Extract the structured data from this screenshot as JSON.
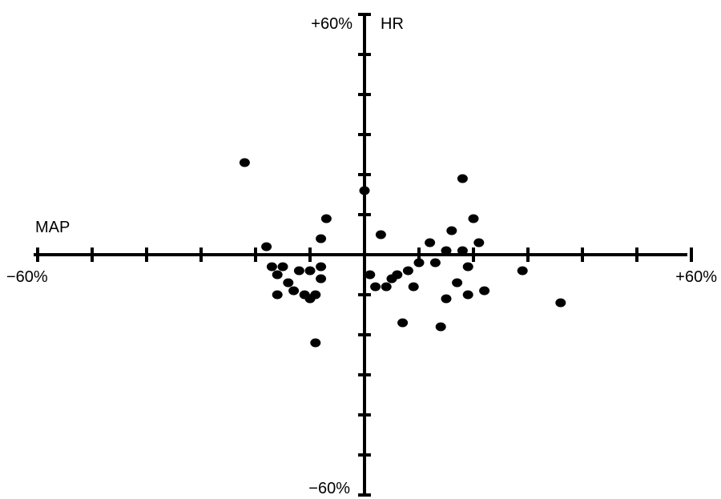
{
  "chart_data": {
    "type": "scatter",
    "title": "",
    "xlabel": "MAP",
    "ylabel": "HR",
    "xlim": [
      -60,
      60
    ],
    "ylim": [
      -60,
      60
    ],
    "x_tick_labels": {
      "min": "−60%",
      "max": "+60%"
    },
    "y_tick_labels": {
      "min": "−60%",
      "max": "+60%"
    },
    "x_tick_step": 10,
    "y_tick_step": 10,
    "grid": false,
    "legend": "none",
    "point_color": "#000000",
    "points": [
      [
        -22,
        23
      ],
      [
        -18,
        2
      ],
      [
        -17,
        -3
      ],
      [
        -16,
        -5
      ],
      [
        -15,
        -3
      ],
      [
        -14,
        -7
      ],
      [
        -16,
        -10
      ],
      [
        -13,
        -9
      ],
      [
        -12,
        -4
      ],
      [
        -11,
        -10
      ],
      [
        -10,
        -4
      ],
      [
        -8,
        -6
      ],
      [
        -10,
        -11
      ],
      [
        -9,
        -10
      ],
      [
        -8,
        -3
      ],
      [
        -8,
        4
      ],
      [
        -7,
        9
      ],
      [
        0,
        16
      ],
      [
        -9,
        -22
      ],
      [
        1,
        -5
      ],
      [
        2,
        -8
      ],
      [
        4,
        -8
      ],
      [
        3,
        5
      ],
      [
        5,
        -6
      ],
      [
        6,
        -5
      ],
      [
        8,
        -4
      ],
      [
        9,
        -8
      ],
      [
        10,
        -2
      ],
      [
        12,
        3
      ],
      [
        13,
        -2
      ],
      [
        15,
        1
      ],
      [
        16,
        6
      ],
      [
        18,
        1
      ],
      [
        18,
        19
      ],
      [
        19,
        -3
      ],
      [
        17,
        -7
      ],
      [
        20,
        9
      ],
      [
        19,
        -10
      ],
      [
        21,
        3
      ],
      [
        22,
        -9
      ],
      [
        15,
        -11
      ],
      [
        7,
        -17
      ],
      [
        14,
        -18
      ],
      [
        29,
        -4
      ],
      [
        36,
        -12
      ]
    ]
  }
}
